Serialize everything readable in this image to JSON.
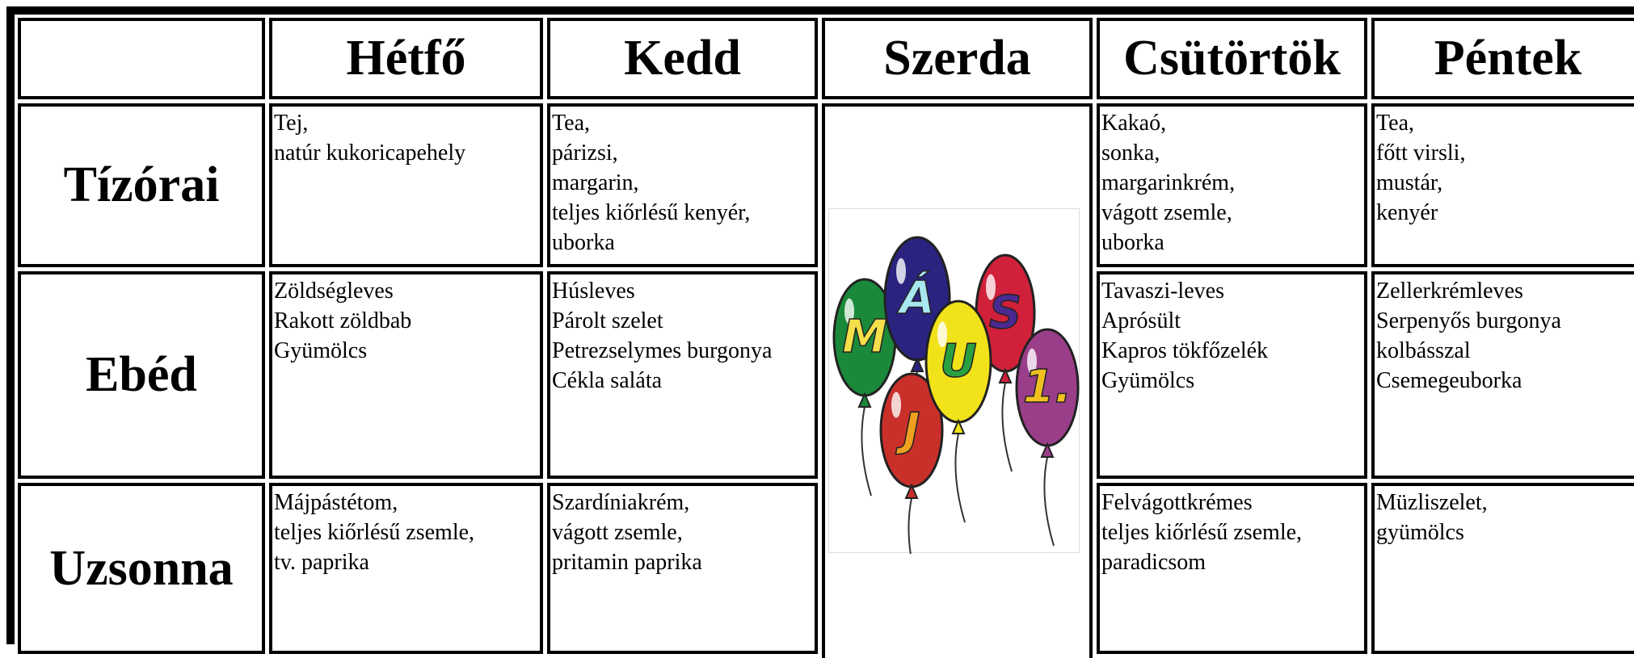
{
  "header": {
    "columns": [
      "Hétfő",
      "Kedd",
      "Szerda",
      "Csütörtök",
      "Péntek"
    ]
  },
  "rows": [
    {
      "label": "Tízórai",
      "cells": [
        [
          "Tej,",
          "natúr kukoricapehely"
        ],
        [
          "Tea,",
          "párizsi,",
          "margarin,",
          "teljes kiőrlésű kenyér,",
          "uborka"
        ],
        [
          "Kakaó,",
          "sonka,",
          "margarinkrém,",
          "vágott zsemle,",
          "uborka"
        ],
        [
          "Tea,",
          "főtt virsli,",
          "mustár,",
          "kenyér"
        ]
      ]
    },
    {
      "label": "Ebéd",
      "cells": [
        [
          "Zöldségleves",
          "Rakott zöldbab",
          "Gyümölcs"
        ],
        [
          "Húsleves",
          "Párolt szelet",
          "Petrezselymes burgonya",
          "Cékla saláta"
        ],
        [
          "Tavaszi-leves",
          "Aprósült",
          "Kapros tökfőzelék",
          "Gyümölcs"
        ],
        [
          "Zellerkrémleves",
          "Serpenyős burgonya",
          "kolbásszal",
          "Csemegeuborka"
        ]
      ]
    },
    {
      "label": "Uzsonna",
      "cells": [
        [
          "Májpástétom,",
          "teljes kiőrlésű zsemle,",
          "tv. paprika"
        ],
        [
          "Szardíniakrém,",
          "vágott zsemle,",
          "pritamin paprika"
        ],
        [
          "Felvágottkrémes",
          "teljes kiőrlésű zsemle,",
          "paradicsom"
        ],
        [
          "Müzliszelet,",
          "gyümölcs"
        ]
      ]
    }
  ],
  "szerda_image": {
    "letters": [
      "M",
      "Á",
      "J",
      "U",
      "S",
      "1."
    ]
  }
}
